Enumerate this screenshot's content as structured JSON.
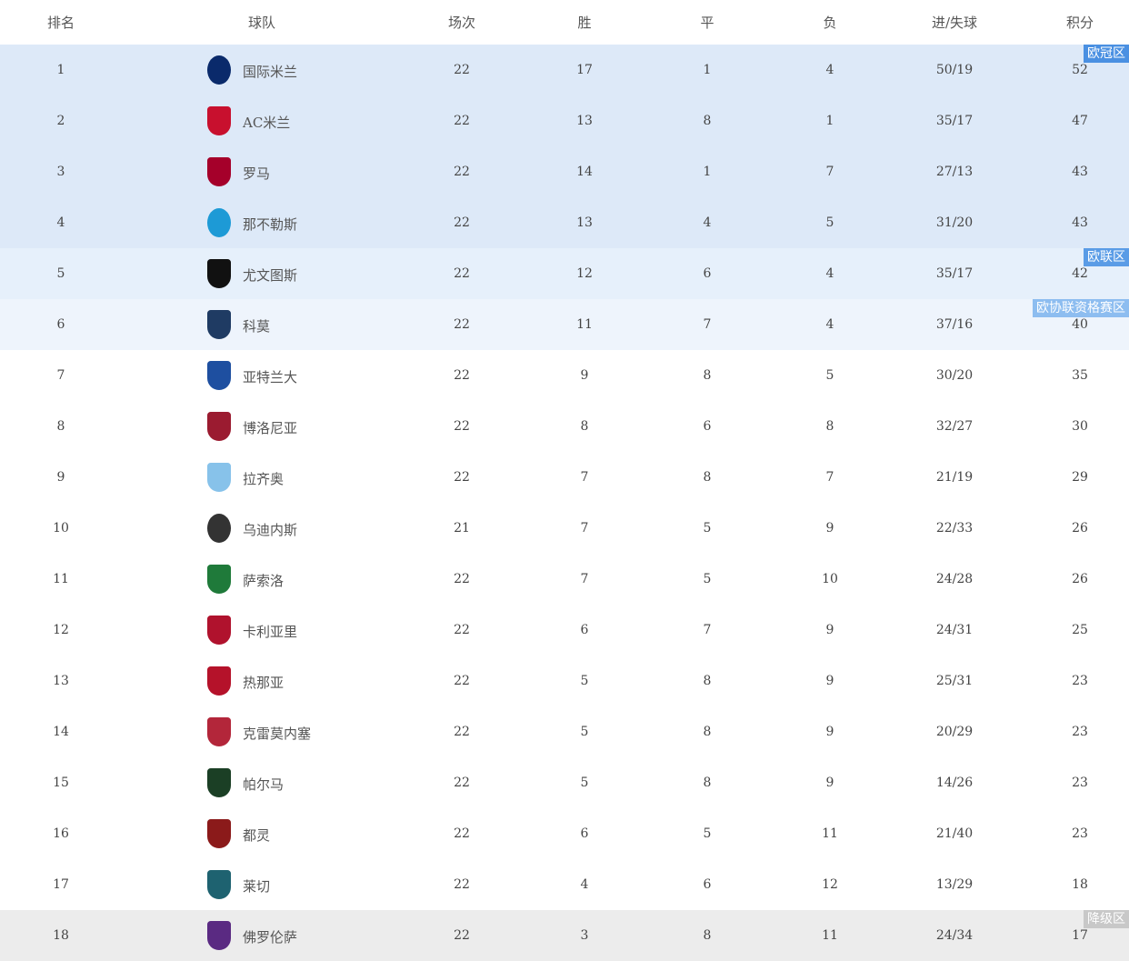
{
  "headers": [
    "排名",
    "球队",
    "场次",
    "胜",
    "平",
    "负",
    "进/失球",
    "积分"
  ],
  "zone_colors": {
    "ucl": "#dde9f8",
    "uel": "#e6f0fb",
    "uecl": "#eef4fc",
    "relegation": "#ececec"
  },
  "rows": [
    {
      "rank": "1",
      "team": "国际米兰",
      "played": "22",
      "w": "17",
      "d": "1",
      "l": "4",
      "goals": "50/19",
      "pts": "52",
      "zone": "ucl",
      "badge": "欧冠区",
      "logo": "inter-logo",
      "logo_color": "#0a2a6b"
    },
    {
      "rank": "2",
      "team": "AC米兰",
      "played": "22",
      "w": "13",
      "d": "8",
      "l": "1",
      "goals": "35/17",
      "pts": "47",
      "zone": "ucl",
      "logo": "milan-logo",
      "logo_color": "#c8102e"
    },
    {
      "rank": "3",
      "team": "罗马",
      "played": "22",
      "w": "14",
      "d": "1",
      "l": "7",
      "goals": "27/13",
      "pts": "43",
      "zone": "ucl",
      "logo": "roma-logo",
      "logo_color": "#a5002a"
    },
    {
      "rank": "4",
      "team": "那不勒斯",
      "played": "22",
      "w": "13",
      "d": "4",
      "l": "5",
      "goals": "31/20",
      "pts": "43",
      "zone": "ucl",
      "logo": "napoli-logo",
      "logo_color": "#1d9ad6"
    },
    {
      "rank": "5",
      "team": "尤文图斯",
      "played": "22",
      "w": "12",
      "d": "6",
      "l": "4",
      "goals": "35/17",
      "pts": "42",
      "zone": "uel",
      "badge": "欧联区",
      "logo": "juventus-logo",
      "logo_color": "#111111"
    },
    {
      "rank": "6",
      "team": "科莫",
      "played": "22",
      "w": "11",
      "d": "7",
      "l": "4",
      "goals": "37/16",
      "pts": "40",
      "zone": "uecl",
      "badge": "欧协联资格赛区",
      "logo": "como-logo",
      "logo_color": "#1f3b63"
    },
    {
      "rank": "7",
      "team": "亚特兰大",
      "played": "22",
      "w": "9",
      "d": "8",
      "l": "5",
      "goals": "30/20",
      "pts": "35",
      "logo": "atalanta-logo",
      "logo_color": "#1e4fa0"
    },
    {
      "rank": "8",
      "team": "博洛尼亚",
      "played": "22",
      "w": "8",
      "d": "6",
      "l": "8",
      "goals": "32/27",
      "pts": "30",
      "logo": "bologna-logo",
      "logo_color": "#9b1b30"
    },
    {
      "rank": "9",
      "team": "拉齐奥",
      "played": "22",
      "w": "7",
      "d": "8",
      "l": "7",
      "goals": "21/19",
      "pts": "29",
      "logo": "lazio-logo",
      "logo_color": "#87c2ea"
    },
    {
      "rank": "10",
      "team": "乌迪内斯",
      "played": "21",
      "w": "7",
      "d": "5",
      "l": "9",
      "goals": "22/33",
      "pts": "26",
      "logo": "udinese-logo",
      "logo_color": "#333333"
    },
    {
      "rank": "11",
      "team": "萨索洛",
      "played": "22",
      "w": "7",
      "d": "5",
      "l": "10",
      "goals": "24/28",
      "pts": "26",
      "logo": "sassuolo-logo",
      "logo_color": "#1f7a3a"
    },
    {
      "rank": "12",
      "team": "卡利亚里",
      "played": "22",
      "w": "6",
      "d": "7",
      "l": "9",
      "goals": "24/31",
      "pts": "25",
      "logo": "cagliari-logo",
      "logo_color": "#b0122d"
    },
    {
      "rank": "13",
      "team": "热那亚",
      "played": "22",
      "w": "5",
      "d": "8",
      "l": "9",
      "goals": "25/31",
      "pts": "23",
      "logo": "genoa-logo",
      "logo_color": "#b5122a"
    },
    {
      "rank": "14",
      "team": "克雷莫内塞",
      "played": "22",
      "w": "5",
      "d": "8",
      "l": "9",
      "goals": "20/29",
      "pts": "23",
      "logo": "cremonese-logo",
      "logo_color": "#b3263a"
    },
    {
      "rank": "15",
      "team": "帕尔马",
      "played": "22",
      "w": "5",
      "d": "8",
      "l": "9",
      "goals": "14/26",
      "pts": "23",
      "logo": "parma-logo",
      "logo_color": "#1b3f25"
    },
    {
      "rank": "16",
      "team": "都灵",
      "played": "22",
      "w": "6",
      "d": "5",
      "l": "11",
      "goals": "21/40",
      "pts": "23",
      "logo": "torino-logo",
      "logo_color": "#8b1a1a"
    },
    {
      "rank": "17",
      "team": "莱切",
      "played": "22",
      "w": "4",
      "d": "6",
      "l": "12",
      "goals": "13/29",
      "pts": "18",
      "logo": "lecce-logo",
      "logo_color": "#1e6270"
    },
    {
      "rank": "18",
      "team": "佛罗伦萨",
      "played": "22",
      "w": "3",
      "d": "8",
      "l": "11",
      "goals": "24/34",
      "pts": "17",
      "zone": "relegation",
      "badge": "降级区",
      "logo": "fiorentina-logo",
      "logo_color": "#5a2a82"
    }
  ]
}
